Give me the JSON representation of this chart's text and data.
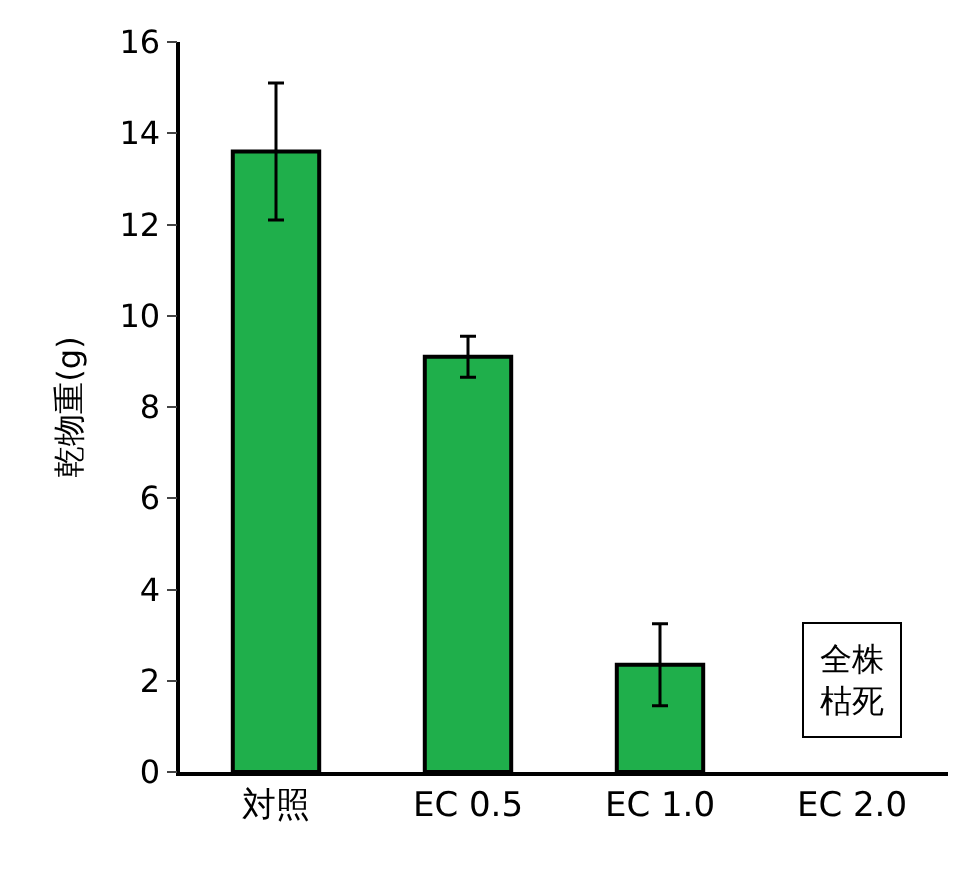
{
  "chart_data": {
    "type": "bar",
    "ylabel": "乾物重(g)",
    "categories": [
      "対照",
      "EC 0.5",
      "EC 1.0",
      "EC 2.0"
    ],
    "values": [
      13.6,
      9.1,
      2.35,
      null
    ],
    "errors": [
      1.5,
      0.45,
      0.9,
      null
    ],
    "color": "#1faf4b",
    "ylim": [
      0,
      16
    ],
    "yticks": [
      0,
      2,
      4,
      6,
      8,
      10,
      12,
      14,
      16
    ],
    "annotations": [
      "全株枯死"
    ]
  }
}
